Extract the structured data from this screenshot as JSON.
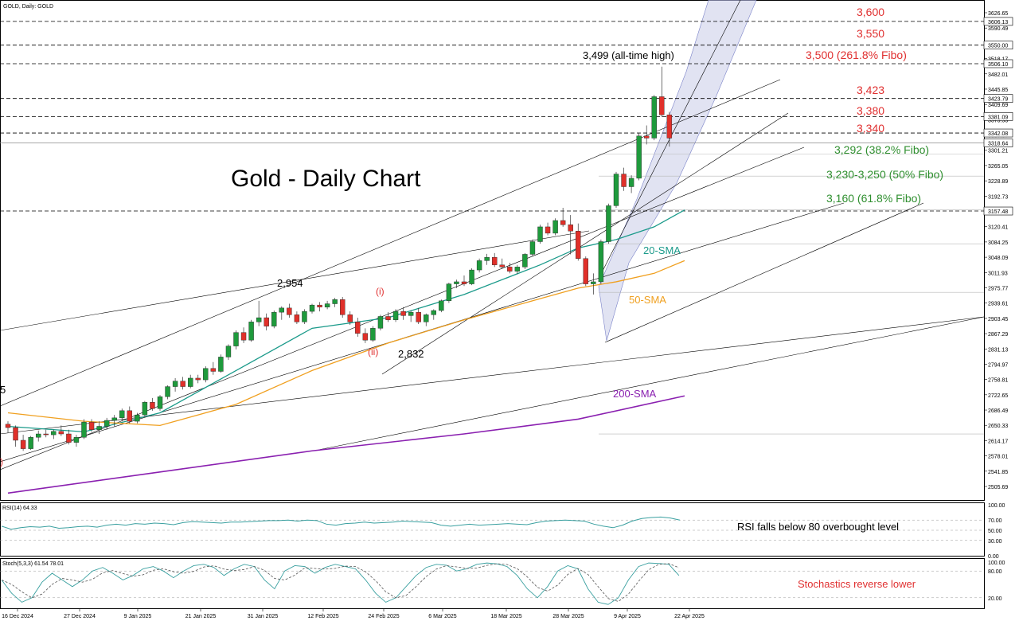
{
  "header": {
    "symbol_label": "GOLD, Daily:  GOLD"
  },
  "chart_title": "Gold - Daily Chart",
  "colors": {
    "up": "#1e9a3c",
    "down": "#e0302a",
    "sma20": "#1a9a8a",
    "sma50": "#f0a020",
    "sma200": "#8a20b0",
    "resistance": "#e03030",
    "support": "#2f8f2f",
    "channel": "#c8cce8",
    "grid": "#000000"
  },
  "chart_data": {
    "type": "candlestick",
    "title": "Gold - Daily Chart",
    "ylim": [
      2490,
      3640
    ],
    "y_ticks": [
      "3626.65",
      "3590.49",
      "3554.33",
      "3518.17",
      "3482.01",
      "3445.85",
      "3409.69",
      "3373.53",
      "3337.37",
      "3301.21",
      "3265.05",
      "3228.89",
      "3192.73",
      "3156.57",
      "3120.41",
      "3084.25",
      "3048.09",
      "3011.93",
      "2975.77",
      "2939.61",
      "2903.45",
      "2867.29",
      "2831.13",
      "2794.97",
      "2758.81",
      "2722.65",
      "2686.49",
      "2650.33",
      "2614.17",
      "2578.01",
      "2541.85",
      "2505.69"
    ],
    "price_tags": [
      "3606.13",
      "3550.00",
      "3506.10",
      "3423.79",
      "3381.09",
      "3342.08",
      "3318.64",
      "3157.48"
    ],
    "x_labels": [
      "16 Dec 2024",
      "27 Dec 2024",
      "9 Jan 2025",
      "21 Jan 2025",
      "31 Jan 2025",
      "12 Feb 2025",
      "24 Feb 2025",
      "6 Mar 2025",
      "18 Mar 2025",
      "28 Mar 2025",
      "9 Apr 2025",
      "22 Apr 2025"
    ],
    "candles": [
      [
        2653,
        2660,
        2632,
        2645
      ],
      [
        2645,
        2650,
        2600,
        2615
      ],
      [
        2615,
        2628,
        2590,
        2595
      ],
      [
        2595,
        2625,
        2592,
        2622
      ],
      [
        2622,
        2638,
        2612,
        2630
      ],
      [
        2630,
        2640,
        2622,
        2628
      ],
      [
        2628,
        2640,
        2618,
        2636
      ],
      [
        2636,
        2650,
        2625,
        2630
      ],
      [
        2630,
        2640,
        2605,
        2610
      ],
      [
        2610,
        2628,
        2600,
        2622
      ],
      [
        2622,
        2665,
        2618,
        2658
      ],
      [
        2658,
        2665,
        2635,
        2640
      ],
      [
        2640,
        2660,
        2630,
        2648
      ],
      [
        2648,
        2668,
        2640,
        2662
      ],
      [
        2662,
        2675,
        2648,
        2668
      ],
      [
        2668,
        2690,
        2660,
        2685
      ],
      [
        2685,
        2695,
        2655,
        2660
      ],
      [
        2660,
        2680,
        2655,
        2675
      ],
      [
        2675,
        2708,
        2670,
        2705
      ],
      [
        2705,
        2715,
        2685,
        2690
      ],
      [
        2690,
        2722,
        2685,
        2718
      ],
      [
        2718,
        2745,
        2712,
        2742
      ],
      [
        2742,
        2762,
        2730,
        2755
      ],
      [
        2755,
        2765,
        2735,
        2742
      ],
      [
        2742,
        2770,
        2738,
        2762
      ],
      [
        2762,
        2770,
        2750,
        2758
      ],
      [
        2758,
        2790,
        2752,
        2785
      ],
      [
        2785,
        2800,
        2770,
        2778
      ],
      [
        2778,
        2818,
        2775,
        2812
      ],
      [
        2812,
        2842,
        2805,
        2838
      ],
      [
        2838,
        2875,
        2830,
        2870
      ],
      [
        2870,
        2882,
        2845,
        2852
      ],
      [
        2852,
        2900,
        2848,
        2895
      ],
      [
        2895,
        2945,
        2885,
        2905
      ],
      [
        2905,
        2915,
        2875,
        2885
      ],
      [
        2885,
        2922,
        2880,
        2918
      ],
      [
        2918,
        2932,
        2900,
        2928
      ],
      [
        2928,
        2938,
        2905,
        2912
      ],
      [
        2912,
        2920,
        2890,
        2895
      ],
      [
        2895,
        2925,
        2890,
        2920
      ],
      [
        2920,
        2938,
        2915,
        2935
      ],
      [
        2935,
        2942,
        2920,
        2930
      ],
      [
        2930,
        2945,
        2925,
        2938
      ],
      [
        2938,
        2952,
        2930,
        2948
      ],
      [
        2948,
        2954,
        2905,
        2912
      ],
      [
        2912,
        2920,
        2888,
        2895
      ],
      [
        2895,
        2905,
        2860,
        2868
      ],
      [
        2868,
        2880,
        2845,
        2852
      ],
      [
        2852,
        2885,
        2848,
        2880
      ],
      [
        2880,
        2912,
        2875,
        2908
      ],
      [
        2908,
        2918,
        2895,
        2900
      ],
      [
        2900,
        2925,
        2895,
        2920
      ],
      [
        2920,
        2930,
        2900,
        2910
      ],
      [
        2910,
        2922,
        2895,
        2918
      ],
      [
        2918,
        2928,
        2890,
        2895
      ],
      [
        2895,
        2915,
        2885,
        2912
      ],
      [
        2912,
        2925,
        2900,
        2922
      ],
      [
        2922,
        2948,
        2918,
        2945
      ],
      [
        2945,
        2988,
        2940,
        2985
      ],
      [
        2985,
        2995,
        2975,
        2990
      ],
      [
        2990,
        3005,
        2980,
        2985
      ],
      [
        2985,
        3022,
        2982,
        3018
      ],
      [
        3018,
        3045,
        3012,
        3040
      ],
      [
        3040,
        3056,
        3030,
        3048
      ],
      [
        3048,
        3058,
        3025,
        3030
      ],
      [
        3030,
        3045,
        3020,
        3025
      ],
      [
        3025,
        3035,
        3010,
        3015
      ],
      [
        3015,
        3030,
        3008,
        3025
      ],
      [
        3025,
        3058,
        3020,
        3055
      ],
      [
        3055,
        3090,
        3050,
        3085
      ],
      [
        3085,
        3125,
        3080,
        3120
      ],
      [
        3120,
        3130,
        3100,
        3105
      ],
      [
        3105,
        3140,
        3100,
        3135
      ],
      [
        3135,
        3165,
        3120,
        3125
      ],
      [
        3125,
        3148,
        3055,
        3110
      ],
      [
        3110,
        3128,
        3040,
        3045
      ],
      [
        3045,
        3050,
        2980,
        2985
      ],
      [
        2985,
        3010,
        2960,
        2990
      ],
      [
        2990,
        3090,
        2985,
        3085
      ],
      [
        3085,
        3175,
        3080,
        3170
      ],
      [
        3170,
        3250,
        3165,
        3245
      ],
      [
        3245,
        3260,
        3205,
        3215
      ],
      [
        3215,
        3242,
        3200,
        3235
      ],
      [
        3235,
        3342,
        3230,
        3335
      ],
      [
        3335,
        3360,
        3315,
        3330
      ],
      [
        3330,
        3432,
        3325,
        3428
      ],
      [
        3428,
        3499,
        3380,
        3385
      ],
      [
        3385,
        3392,
        3310,
        3330
      ]
    ],
    "series": [
      {
        "name": "20-SMA",
        "values": [
          [
            0,
            2648
          ],
          [
            10,
            2635
          ],
          [
            20,
            2680
          ],
          [
            30,
            2780
          ],
          [
            40,
            2880
          ],
          [
            50,
            2905
          ],
          [
            60,
            2960
          ],
          [
            70,
            3030
          ],
          [
            75,
            3070
          ],
          [
            80,
            3090
          ],
          [
            85,
            3120
          ],
          [
            89,
            3160
          ]
        ]
      },
      {
        "name": "50-SMA",
        "values": [
          [
            0,
            2680
          ],
          [
            10,
            2660
          ],
          [
            20,
            2650
          ],
          [
            30,
            2700
          ],
          [
            40,
            2780
          ],
          [
            50,
            2845
          ],
          [
            60,
            2900
          ],
          [
            70,
            2950
          ],
          [
            75,
            2975
          ],
          [
            80,
            2990
          ],
          [
            85,
            3010
          ],
          [
            89,
            3040
          ]
        ]
      },
      {
        "name": "200-SMA",
        "values": [
          [
            0,
            2490
          ],
          [
            20,
            2540
          ],
          [
            40,
            2590
          ],
          [
            60,
            2630
          ],
          [
            75,
            2665
          ],
          [
            89,
            2720
          ]
        ]
      }
    ],
    "horizontal_levels": [
      3606.13,
      3550.0,
      3506.1,
      3423.79,
      3381.09,
      3342.08,
      3318.64,
      3157.48
    ],
    "fibo_levels": [
      3292,
      3240,
      3160,
      3080,
      2965,
      2630
    ],
    "annotations": {
      "resistance": [
        {
          "text": "3,600",
          "price": 3610
        },
        {
          "text": "3,550",
          "price": 3554
        },
        {
          "text": "3,500 (261.8% Fibo)",
          "price": 3508
        },
        {
          "text": "3,423",
          "price": 3434
        },
        {
          "text": "3,380",
          "price": 3390
        },
        {
          "text": "3,340",
          "price": 3349
        }
      ],
      "support": [
        {
          "text": "3,292 (38.2% Fibo)",
          "price": 3296
        },
        {
          "text": "3,230-3,250 (50% Fibo)",
          "price": 3234
        },
        {
          "text": "3,160 (61.8% Fibo)",
          "price": 3163
        }
      ],
      "ath_label": "3,499 (all-time high)",
      "high_2954": "2,954",
      "low_2832": "2,832",
      "wave_i": "(i)",
      "wave_ii": "(ii)",
      "sma20_label": "20-SMA",
      "sma50_label": "50-SMA",
      "sma200_label": "200-SMA",
      "edge_5": "5",
      "edge_paren": ")"
    },
    "rsi": {
      "label": "RSI(14) 64.33",
      "ticks": [
        "100.00",
        "70.00",
        "50.00",
        "30.00",
        "0.00"
      ],
      "annotation": "RSI falls below 80 overbought level"
    },
    "stoch": {
      "label": "Stoch(5,3,3) 61.54 78.01",
      "ticks": [
        "100.00",
        "80.00",
        "20.00"
      ],
      "annotation": "Stochastics reverse lower"
    }
  }
}
